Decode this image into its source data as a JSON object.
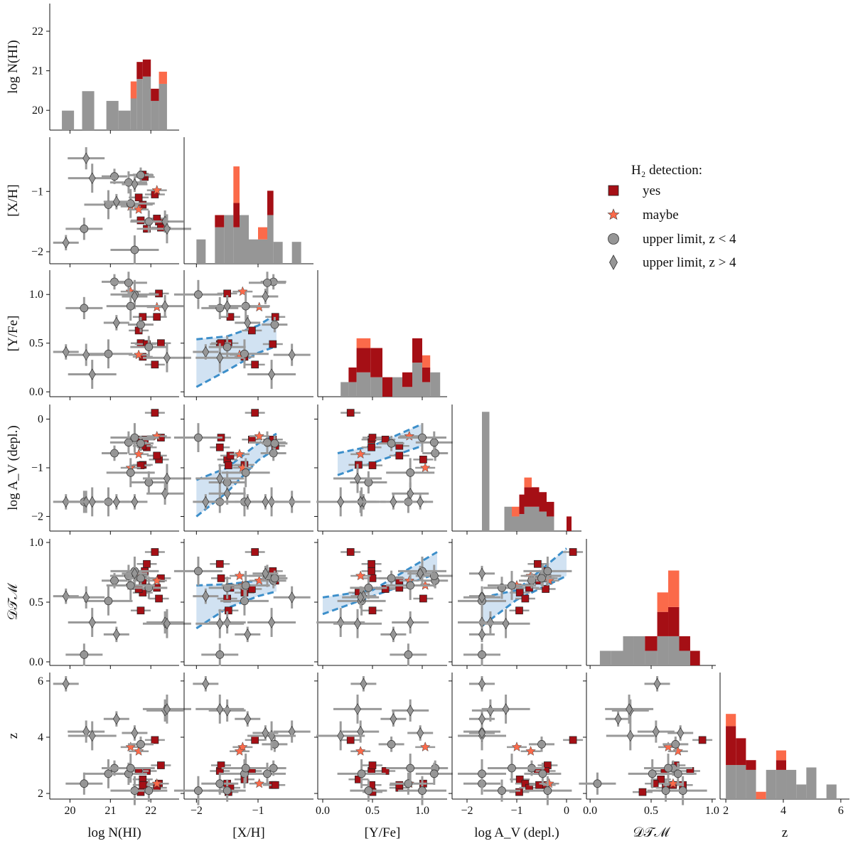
{
  "chart_data": {
    "type": "scatter",
    "title": "",
    "variables": [
      {
        "key": "nhi",
        "label": "log N(HI)",
        "range": [
          19.5,
          22.7
        ],
        "ticks": [
          20,
          21,
          22
        ],
        "tick_labels": [
          "20",
          "21",
          "22"
        ]
      },
      {
        "key": "xh",
        "label": "[X/H]",
        "range": [
          -2.2,
          -0.1
        ],
        "ticks": [
          -2,
          -1
        ],
        "tick_labels": [
          "−2",
          "−1"
        ]
      },
      {
        "key": "yfe",
        "label": "[Y/Fe]",
        "range": [
          -0.05,
          1.25
        ],
        "ticks": [
          0.0,
          0.5,
          1.0
        ],
        "tick_labels": [
          "0.0",
          "0.5",
          "1.0"
        ]
      },
      {
        "key": "av",
        "label": "log A_V (depl.)",
        "range": [
          -2.3,
          0.3
        ],
        "ticks": [
          -2,
          -1,
          0
        ],
        "tick_labels": [
          "−2",
          "−1",
          "0"
        ]
      },
      {
        "key": "dtm",
        "label": "𝒟𝒯ℳ",
        "range": [
          -0.03,
          1.03
        ],
        "ticks": [
          0.0,
          0.5,
          1.0
        ],
        "tick_labels": [
          "0.0",
          "0.5",
          "1.0"
        ]
      },
      {
        "key": "z",
        "label": "z",
        "range": [
          1.8,
          6.3
        ],
        "ticks": [
          2,
          4,
          6
        ],
        "tick_labels": [
          "2",
          "4",
          "6"
        ]
      }
    ],
    "legend": {
      "title": "H₂ detection:",
      "entries": [
        {
          "label": "yes",
          "marker": "square",
          "color": "#a50f15"
        },
        {
          "label": "maybe",
          "marker": "star",
          "color": "#fb6a4a"
        },
        {
          "label": "upper limit, z < 4",
          "marker": "circle",
          "color": "#969696"
        },
        {
          "label": "upper limit, z > 4",
          "marker": "diamond",
          "color": "#969696"
        }
      ],
      "placement": "top-right"
    },
    "colors": {
      "yes": "#a50f15",
      "maybe": "#fb6a4a",
      "gray": "#969696",
      "band": "#c6dbef",
      "band_edge": "#3d8fca"
    },
    "points": [
      {
        "g": "yes",
        "nhi": 21.8,
        "xh": -1.22,
        "yfe": 0.36,
        "av": -0.94,
        "dtm": 0.58,
        "z": 2.5
      },
      {
        "g": "yes",
        "nhi": 21.85,
        "xh": -0.76,
        "yfe": 0.49,
        "av": -0.42,
        "dtm": 0.76,
        "z": 2.3
      },
      {
        "g": "yes",
        "nhi": 22.1,
        "xh": -1.05,
        "yfe": 0.28,
        "av": 0.13,
        "dtm": 0.92,
        "z": 3.9
      },
      {
        "g": "yes",
        "nhi": 22.2,
        "xh": -1.5,
        "yfe": 1.01,
        "av": -0.83,
        "dtm": 0.53,
        "z": 2.35
      },
      {
        "g": "yes",
        "nhi": 21.75,
        "xh": -1.48,
        "yfe": 0.5,
        "av": -0.95,
        "dtm": 0.43,
        "z": 2.05
      },
      {
        "g": "yes",
        "nhi": 21.9,
        "xh": -1.62,
        "yfe": 0.49,
        "av": -0.58,
        "dtm": 0.82,
        "z": 2.8
      },
      {
        "g": "yes",
        "nhi": 22.25,
        "xh": -1.6,
        "yfe": 0.5,
        "av": -0.38,
        "dtm": 0.7,
        "z": 3.0
      },
      {
        "g": "yes",
        "nhi": 22.15,
        "xh": -1.45,
        "yfe": 0.77,
        "av": -0.75,
        "dtm": 0.62,
        "z": 2.2
      },
      {
        "g": "yes",
        "nhi": 21.7,
        "xh": -1.1,
        "yfe": 0.63,
        "av": -0.42,
        "dtm": 0.61,
        "z": 2.8
      },
      {
        "g": "yes",
        "nhi": 21.8,
        "xh": -0.72,
        "yfe": 0.77,
        "av": -0.55,
        "dtm": 0.68,
        "z": 2.3
      },
      {
        "g": "maybe",
        "nhi": 22.15,
        "xh": -0.98,
        "yfe": 0.87,
        "av": -0.35,
        "dtm": 0.68,
        "z": 2.35
      },
      {
        "g": "maybe",
        "nhi": 21.5,
        "xh": -1.25,
        "yfe": 1.03,
        "av": -1.0,
        "dtm": 0.64,
        "z": 3.65
      },
      {
        "g": "maybe",
        "nhi": 21.7,
        "xh": -1.3,
        "yfe": 0.38,
        "av": -0.72,
        "dtm": 0.72,
        "z": 3.5
      },
      {
        "g": "ulow",
        "nhi": 20.35,
        "xh": -1.62,
        "yfe": 0.86,
        "av": -1.7,
        "dtm": 0.06,
        "z": 2.35
      },
      {
        "g": "ulow",
        "nhi": 20.95,
        "xh": -1.22,
        "yfe": 0.39,
        "av": -1.7,
        "dtm": 0.51,
        "z": 2.7
      },
      {
        "g": "ulow",
        "nhi": 21.1,
        "xh": -0.75,
        "yfe": 1.13,
        "av": -0.7,
        "dtm": 0.68,
        "z": 2.9
      },
      {
        "g": "ulow",
        "nhi": 21.45,
        "xh": -0.85,
        "yfe": 1.12,
        "av": -0.48,
        "dtm": 0.72,
        "z": 2.7
      },
      {
        "g": "ulow",
        "nhi": 21.6,
        "xh": -1.97,
        "yfe": 1.0,
        "av": -0.38,
        "dtm": 0.76,
        "z": 2.1
      },
      {
        "g": "ulow",
        "nhi": 21.75,
        "xh": -0.73,
        "yfe": 0.69,
        "av": -0.5,
        "dtm": 0.7,
        "z": 3.75
      },
      {
        "g": "ulow",
        "nhi": 21.95,
        "xh": -1.5,
        "yfe": 0.46,
        "av": -1.3,
        "dtm": 0.62,
        "z": 2.1
      },
      {
        "g": "ulow",
        "nhi": 21.5,
        "xh": -1.2,
        "yfe": 0.88,
        "av": -1.1,
        "dtm": 0.64,
        "z": 2.9
      },
      {
        "g": "uhigh",
        "nhi": 19.9,
        "xh": -1.85,
        "yfe": 0.41,
        "av": -1.7,
        "dtm": 0.55,
        "z": 5.9
      },
      {
        "g": "uhigh",
        "nhi": 20.4,
        "xh": -0.45,
        "yfe": 0.38,
        "av": -1.7,
        "dtm": 0.54,
        "z": 4.2
      },
      {
        "g": "uhigh",
        "nhi": 20.55,
        "xh": -0.78,
        "yfe": 0.18,
        "av": -1.7,
        "dtm": 0.33,
        "z": 4.05
      },
      {
        "g": "uhigh",
        "nhi": 21.15,
        "xh": -1.17,
        "yfe": 0.71,
        "av": -1.7,
        "dtm": 0.23,
        "z": 4.65
      },
      {
        "g": "uhigh",
        "nhi": 22.35,
        "xh": -1.5,
        "yfe": 0.88,
        "av": -1.53,
        "dtm": 0.33,
        "z": 4.95
      },
      {
        "g": "uhigh",
        "nhi": 22.4,
        "xh": -1.62,
        "yfe": 0.35,
        "av": -1.22,
        "dtm": 0.32,
        "z": 5.0
      },
      {
        "g": "uhigh",
        "nhi": 21.6,
        "xh": -0.88,
        "yfe": 0.98,
        "av": -1.7,
        "dtm": 0.74,
        "z": 4.15
      }
    ],
    "histograms": [
      {
        "bins": [
          [
            19.8,
            20.1,
            0.8,
            0,
            0
          ],
          [
            20.3,
            20.6,
            1.6,
            0,
            0
          ],
          [
            20.9,
            21.2,
            1.2,
            0,
            0
          ],
          [
            21.2,
            21.5,
            0.8,
            0,
            0
          ],
          [
            21.5,
            21.65,
            1.3,
            0,
            0.7
          ],
          [
            21.65,
            21.8,
            2.1,
            0.7,
            0
          ],
          [
            21.8,
            22.0,
            2.2,
            0.7,
            0
          ],
          [
            22.0,
            22.2,
            1.2,
            0.5,
            0
          ],
          [
            22.2,
            22.4,
            1.9,
            0,
            0.5
          ]
        ]
      },
      {
        "bins": [
          [
            -2.0,
            -1.85,
            1,
            0,
            0
          ],
          [
            -1.7,
            -1.55,
            1.5,
            0.5,
            0
          ],
          [
            -1.55,
            -1.4,
            2,
            0,
            0
          ],
          [
            -1.4,
            -1.3,
            1.5,
            1,
            1.5
          ],
          [
            -1.3,
            -1.15,
            2,
            0,
            0
          ],
          [
            -1.15,
            -1.0,
            1,
            0,
            0
          ],
          [
            -1.0,
            -0.85,
            1,
            0,
            0.5
          ],
          [
            -0.85,
            -0.75,
            2,
            1,
            0
          ],
          [
            -0.75,
            -0.6,
            0.9,
            0,
            0
          ],
          [
            -0.45,
            -0.3,
            0.9,
            0,
            0
          ]
        ]
      },
      {
        "bins": [
          [
            0.18,
            0.26,
            0.6,
            0,
            0
          ],
          [
            0.26,
            0.34,
            0.6,
            0.6,
            0
          ],
          [
            0.34,
            0.48,
            1.0,
            1.0,
            0.4
          ],
          [
            0.48,
            0.6,
            0.8,
            1.2,
            0
          ],
          [
            0.6,
            0.7,
            0,
            0.8,
            0
          ],
          [
            0.7,
            0.8,
            0.8,
            0,
            0
          ],
          [
            0.8,
            0.9,
            0.4,
            0.6,
            0
          ],
          [
            0.9,
            1.0,
            1.4,
            1.0,
            0
          ],
          [
            1.0,
            1.08,
            0.6,
            0.6,
            0.5
          ],
          [
            1.08,
            1.18,
            1.0,
            0,
            0
          ]
        ]
      },
      {
        "bins": [
          [
            -1.7,
            -1.55,
            4.9,
            0,
            0
          ],
          [
            -1.25,
            -1.1,
            1.0,
            0,
            0
          ],
          [
            -1.1,
            -0.95,
            0.6,
            0,
            0.4
          ],
          [
            -0.95,
            -0.85,
            0.7,
            0.8,
            0
          ],
          [
            -0.85,
            -0.7,
            1.0,
            0.8,
            0.4
          ],
          [
            -0.7,
            -0.55,
            1.0,
            0.8,
            0
          ],
          [
            -0.55,
            -0.4,
            0.8,
            0.8,
            0
          ],
          [
            -0.4,
            -0.25,
            0.6,
            0.6,
            0
          ],
          [
            0.0,
            0.1,
            0,
            0.6,
            0
          ]
        ]
      },
      {
        "bins": [
          [
            0.08,
            0.17,
            0.6,
            0,
            0
          ],
          [
            0.17,
            0.27,
            0.6,
            0,
            0
          ],
          [
            0.27,
            0.36,
            1.2,
            0,
            0
          ],
          [
            0.36,
            0.45,
            1.2,
            0,
            0
          ],
          [
            0.45,
            0.55,
            0.6,
            0.6,
            0
          ],
          [
            0.55,
            0.64,
            1.2,
            1.0,
            0.8
          ],
          [
            0.64,
            0.73,
            1.2,
            1.2,
            1.5
          ],
          [
            0.73,
            0.82,
            0.6,
            0.6,
            0
          ],
          [
            0.82,
            0.9,
            0,
            0.6,
            0
          ]
        ]
      },
      {
        "bins": [
          [
            2.0,
            2.35,
            1.4,
            1.6,
            0.5
          ],
          [
            2.35,
            2.7,
            1.4,
            1.1,
            0
          ],
          [
            2.7,
            3.05,
            1.2,
            0.4,
            0
          ],
          [
            3.05,
            3.4,
            0,
            0,
            0.3
          ],
          [
            3.4,
            3.75,
            1.2,
            0,
            0
          ],
          [
            3.75,
            4.1,
            1.2,
            0.4,
            0.4
          ],
          [
            4.1,
            4.45,
            1.2,
            0,
            0
          ],
          [
            4.45,
            4.8,
            0.6,
            0,
            0
          ],
          [
            4.8,
            5.15,
            1.3,
            0,
            0
          ],
          [
            5.5,
            5.85,
            0.6,
            0,
            0
          ]
        ]
      }
    ],
    "bands": [
      {
        "x": 1,
        "y": 2,
        "lo": [
          [
            -2,
            0.05
          ],
          [
            -1.5,
            0.22
          ],
          [
            -1,
            0.4
          ],
          [
            -0.7,
            0.47
          ]
        ],
        "hi": [
          [
            -2,
            0.54
          ],
          [
            -1.5,
            0.57
          ],
          [
            -1,
            0.68
          ],
          [
            -0.7,
            0.8
          ]
        ]
      },
      {
        "x": 1,
        "y": 3,
        "lo": [
          [
            -2,
            -2.0
          ],
          [
            -1.5,
            -1.5
          ],
          [
            -1,
            -0.85
          ],
          [
            -0.7,
            -0.6
          ]
        ],
        "hi": [
          [
            -2,
            -1.25
          ],
          [
            -1.5,
            -1.0
          ],
          [
            -1,
            -0.5
          ],
          [
            -0.7,
            -0.3
          ]
        ]
      },
      {
        "x": 2,
        "y": 3,
        "lo": [
          [
            0.15,
            -1.15
          ],
          [
            0.5,
            -0.9
          ],
          [
            1.0,
            -0.55
          ]
        ],
        "hi": [
          [
            0.15,
            -0.7
          ],
          [
            0.5,
            -0.55
          ],
          [
            1.0,
            -0.1
          ]
        ]
      },
      {
        "x": 1,
        "y": 4,
        "lo": [
          [
            -2,
            0.28
          ],
          [
            -1.5,
            0.45
          ],
          [
            -1,
            0.55
          ],
          [
            -0.7,
            0.59
          ]
        ],
        "hi": [
          [
            -2,
            0.64
          ],
          [
            -1.5,
            0.65
          ],
          [
            -1,
            0.68
          ],
          [
            -0.7,
            0.75
          ]
        ]
      },
      {
        "x": 2,
        "y": 4,
        "lo": [
          [
            0.0,
            0.4
          ],
          [
            0.5,
            0.55
          ],
          [
            1.15,
            0.74
          ]
        ],
        "hi": [
          [
            0.0,
            0.54
          ],
          [
            0.5,
            0.6
          ],
          [
            1.15,
            0.92
          ]
        ]
      },
      {
        "x": 3,
        "y": 4,
        "lo": [
          [
            -1.7,
            0.3
          ],
          [
            -1,
            0.52
          ],
          [
            0.0,
            0.72
          ]
        ],
        "hi": [
          [
            -1.7,
            0.54
          ],
          [
            -1,
            0.6
          ],
          [
            0.0,
            0.95
          ]
        ]
      }
    ]
  }
}
